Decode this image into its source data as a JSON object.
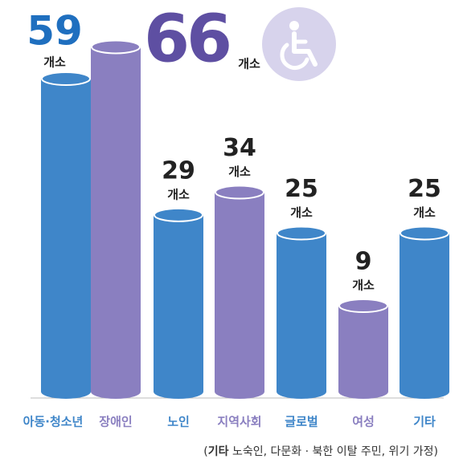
{
  "chart_data": {
    "type": "bar",
    "categories": [
      "아동·청소년",
      "장애인",
      "노인",
      "지역사회",
      "글로벌",
      "여성",
      "기타"
    ],
    "values": [
      59,
      66,
      29,
      34,
      25,
      9,
      25
    ],
    "colors": [
      "#3f86c9",
      "#8a7fc0",
      "#3f86c9",
      "#8a7fc0",
      "#3f86c9",
      "#8a7fc0",
      "#3f86c9"
    ],
    "unit": "개소",
    "note": {
      "open": "(",
      "label": "기타",
      "text": " 노숙인, 다문화 · 북한 이탈 주민, 위기 가정)"
    }
  }
}
